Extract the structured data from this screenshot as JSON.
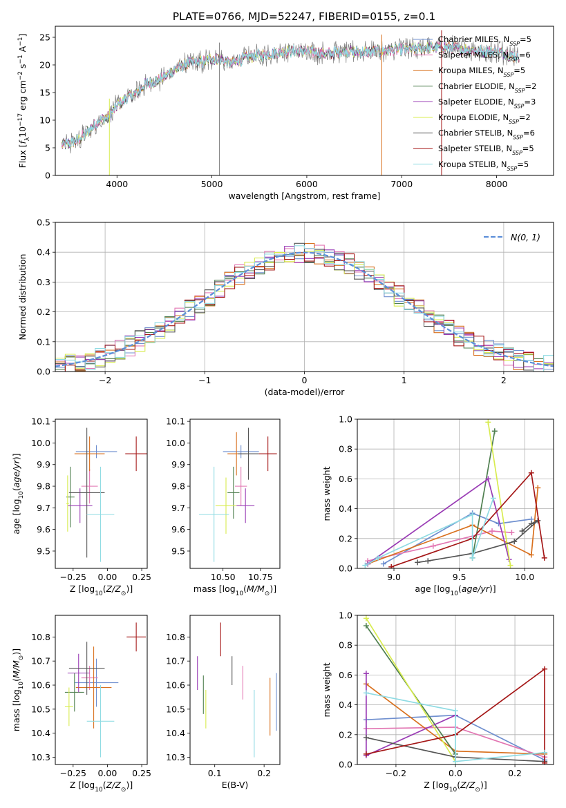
{
  "page_title": "PLATE=0766, MJD=52247, FIBERID=0155, z=0.1",
  "colors": {
    "MILES_Chabrier": "#6f8fcf",
    "MILES_Salpeter": "#e277b3",
    "MILES_Kroupa": "#d9711f",
    "ELODIE_Chabrier": "#4f7f4f",
    "ELODIE_Salpeter": "#9a3cb5",
    "ELODIE_Kroupa": "#d8ec4f",
    "STELIB_Chabrier": "#555555",
    "STELIB_Salpeter": "#a51818",
    "STELIB_Kroupa": "#8fdbe3",
    "normal_curve": "#5b8ed8"
  },
  "chart_data": [
    {
      "id": "spectrum",
      "type": "line",
      "title": "PLATE=0766, MJD=52247, FIBERID=0155, z=0.1",
      "xlabel": "wavelength [Angstrom, rest frame]",
      "ylabel": "Flux [f_λ10^-17 erg cm^-2 s^-1 A^-1]",
      "xlim": [
        3350,
        8600
      ],
      "ylim": [
        0,
        27
      ],
      "xticks": [
        4000,
        5000,
        6000,
        7000,
        8000
      ],
      "yticks": [
        0,
        5,
        10,
        15,
        20,
        25
      ],
      "legend_position": "right",
      "continuum_x": [
        3420,
        3500,
        3600,
        3700,
        3800,
        3900,
        4000,
        4100,
        4200,
        4300,
        4400,
        4500,
        4600,
        4700,
        4800,
        4900,
        5000,
        5100,
        5200,
        5300,
        5400,
        5600,
        5800,
        6000,
        6200,
        6400,
        6600,
        6800,
        7000,
        7200,
        7400,
        7600,
        7800,
        8000,
        8200
      ],
      "continuum_y": [
        5.5,
        5.8,
        6.5,
        8.0,
        9.8,
        10.5,
        12.5,
        14.0,
        14.8,
        16.5,
        17.0,
        17.8,
        19.0,
        20.0,
        20.5,
        20.5,
        21.2,
        21.0,
        20.2,
        21.0,
        21.5,
        22.0,
        22.5,
        22.5,
        22.0,
        22.5,
        22.3,
        22.5,
        22.8,
        23.0,
        23.3,
        23.0,
        22.5,
        22.5,
        21.5
      ],
      "series": [
        {
          "name": "Chabrier MILES, N_SSP=5",
          "color": "#6f8fcf"
        },
        {
          "name": "Salpeter MILES, N_SSP=6",
          "color": "#e277b3"
        },
        {
          "name": "Kroupa MILES, N_SSP=5",
          "color": "#d9711f"
        },
        {
          "name": "Chabrier ELODIE, N_SSP=2",
          "color": "#4f7f4f"
        },
        {
          "name": "Salpeter ELODIE, N_SSP=3",
          "color": "#9a3cb5"
        },
        {
          "name": "Kroupa ELODIE, N_SSP=2",
          "color": "#d8ec4f"
        },
        {
          "name": "Chabrier STELIB, N_SSP=6",
          "color": "#555555"
        },
        {
          "name": "Salpeter STELIB, N_SSP=5",
          "color": "#a51818"
        },
        {
          "name": "Kroupa STELIB, N_SSP=5",
          "color": "#8fdbe3"
        }
      ]
    },
    {
      "id": "residuals",
      "type": "histogram",
      "xlabel": "(data-model)/error",
      "ylabel": "Normed distribution",
      "xlim": [
        -2.5,
        2.5
      ],
      "ylim": [
        0,
        0.5
      ],
      "xticks": [
        -2,
        -1,
        0,
        1,
        2
      ],
      "yticks": [
        0.0,
        0.1,
        0.2,
        0.3,
        0.4,
        0.5
      ],
      "grid": true,
      "legend_position": "top-right",
      "legend_label": "N(0, 1)",
      "bin_width": 0.1
    },
    {
      "id": "age_vs_Z",
      "type": "scatter",
      "xlabel": "Z [log10(Z/Z⊙)]",
      "ylabel": "age [log10(age/yr)]",
      "xlim": [
        -0.38,
        0.29
      ],
      "ylim": [
        9.42,
        10.11
      ],
      "xticks": [
        -0.25,
        0.0,
        0.25
      ],
      "yticks": [
        9.5,
        9.6,
        9.7,
        9.8,
        9.9,
        10.0,
        10.1
      ],
      "points": [
        {
          "color": "#6f8fcf",
          "x": -0.08,
          "y": 9.96,
          "xerr": 0.15,
          "yerr": 0.03
        },
        {
          "color": "#e277b3",
          "x": -0.13,
          "y": 9.8,
          "xerr": 0.06,
          "yerr": 0.08
        },
        {
          "color": "#d9711f",
          "x": -0.13,
          "y": 9.95,
          "xerr": 0.11,
          "yerr": 0.08
        },
        {
          "color": "#4f7f4f",
          "x": -0.27,
          "y": 9.75,
          "xerr": 0.03,
          "yerr": 0.14
        },
        {
          "color": "#9a3cb5",
          "x": -0.2,
          "y": 9.71,
          "xerr": 0.09,
          "yerr": 0.08
        },
        {
          "color": "#d8ec4f",
          "x": -0.29,
          "y": 9.72,
          "xerr": 0.01,
          "yerr": 0.13
        },
        {
          "color": "#555555",
          "x": -0.15,
          "y": 9.77,
          "xerr": 0.13,
          "yerr": 0.3
        },
        {
          "color": "#a51818",
          "x": 0.21,
          "y": 9.95,
          "xerr": 0.08,
          "yerr": 0.08
        },
        {
          "color": "#8fdbe3",
          "x": -0.05,
          "y": 9.67,
          "xerr": 0.1,
          "yerr": 0.22
        }
      ]
    },
    {
      "id": "age_vs_mass",
      "type": "scatter",
      "xlabel": "mass [log10(M/M⊙)]",
      "xlim": [
        10.28,
        10.88
      ],
      "ylim": [
        9.42,
        10.11
      ],
      "xticks": [
        10.5,
        10.75
      ],
      "yticks": [
        9.5,
        9.6,
        9.7,
        9.8,
        9.9,
        10.0,
        10.1
      ],
      "points": [
        {
          "color": "#6f8fcf",
          "x": 10.62,
          "y": 9.96,
          "xerr": 0.12,
          "yerr": 0.03
        },
        {
          "color": "#e277b3",
          "x": 10.62,
          "y": 9.8,
          "xerr": 0.04,
          "yerr": 0.09
        },
        {
          "color": "#d9711f",
          "x": 10.59,
          "y": 9.95,
          "xerr": 0.06,
          "yerr": 0.1
        },
        {
          "color": "#4f7f4f",
          "x": 10.57,
          "y": 9.77,
          "xerr": 0.04,
          "yerr": 0.12
        },
        {
          "color": "#9a3cb5",
          "x": 10.65,
          "y": 9.71,
          "xerr": 0.06,
          "yerr": 0.08
        },
        {
          "color": "#d8ec4f",
          "x": 10.52,
          "y": 9.71,
          "xerr": 0.07,
          "yerr": 0.13
        },
        {
          "color": "#555555",
          "x": 10.67,
          "y": 9.95,
          "xerr": 0.07,
          "yerr": 0.12
        },
        {
          "color": "#a51818",
          "x": 10.8,
          "y": 9.95,
          "xerr": 0.06,
          "yerr": 0.08
        },
        {
          "color": "#8fdbe3",
          "x": 10.44,
          "y": 9.67,
          "xerr": 0.1,
          "yerr": 0.22
        }
      ]
    },
    {
      "id": "massweight_vs_age",
      "type": "line",
      "xlabel": "age [log10(age/yr)]",
      "ylabel": "mass weight",
      "xlim": [
        8.72,
        10.22
      ],
      "ylim": [
        0,
        1.0
      ],
      "xticks": [
        9.0,
        9.5,
        10.0
      ],
      "yticks": [
        0.0,
        0.2,
        0.4,
        0.6,
        0.8,
        1.0
      ],
      "grid": true,
      "series": [
        {
          "color": "#6f8fcf",
          "x": [
            8.92,
            9.6,
            9.8,
            10.05
          ],
          "y": [
            0.03,
            0.37,
            0.3,
            0.33
          ]
        },
        {
          "color": "#e277b3",
          "x": [
            8.8,
            9.3,
            9.75,
            9.9
          ],
          "y": [
            0.05,
            0.15,
            0.25,
            0.24
          ]
        },
        {
          "color": "#d9711f",
          "x": [
            8.8,
            9.6,
            10.05,
            10.1
          ],
          "y": [
            0.03,
            0.29,
            0.09,
            0.54
          ]
        },
        {
          "color": "#4f7f4f",
          "x": [
            9.6,
            9.77
          ],
          "y": [
            0.07,
            0.92
          ]
        },
        {
          "color": "#9a3cb5",
          "x": [
            8.8,
            9.72,
            9.88
          ],
          "y": [
            0.03,
            0.6,
            0.06
          ]
        },
        {
          "color": "#d8ec4f",
          "x": [
            9.72,
            9.89
          ],
          "y": [
            0.98,
            0.02
          ]
        },
        {
          "color": "#555555",
          "x": [
            9.18,
            9.26,
            9.6,
            9.92,
            10.1,
            10.05,
            9.98
          ],
          "y": [
            0.04,
            0.05,
            0.1,
            0.18,
            0.32,
            0.3,
            0.25
          ]
        },
        {
          "color": "#a51818",
          "x": [
            8.98,
            9.6,
            10.05,
            10.15
          ],
          "y": [
            0.01,
            0.2,
            0.64,
            0.07
          ]
        },
        {
          "color": "#8fdbe3",
          "x": [
            8.78,
            8.88,
            9.6,
            9.6,
            9.76
          ],
          "y": [
            0.02,
            0.07,
            0.36,
            0.07,
            0.47
          ]
        }
      ]
    },
    {
      "id": "mass_vs_Z",
      "type": "scatter",
      "xlabel": "Z [log10(Z/Z⊙)]",
      "ylabel": "mass [log10(M/M⊙)]",
      "xlim": [
        -0.38,
        0.29
      ],
      "ylim": [
        10.27,
        10.89
      ],
      "xticks": [
        -0.25,
        0.0,
        0.25
      ],
      "yticks": [
        10.3,
        10.4,
        10.5,
        10.6,
        10.7,
        10.8
      ],
      "points": [
        {
          "color": "#6f8fcf",
          "x": -0.08,
          "y": 10.61,
          "xerr": 0.16,
          "yerr": 0.1
        },
        {
          "color": "#e277b3",
          "x": -0.13,
          "y": 10.63,
          "xerr": 0.06,
          "yerr": 0.05
        },
        {
          "color": "#d9711f",
          "x": -0.1,
          "y": 10.59,
          "xerr": 0.13,
          "yerr": 0.17
        },
        {
          "color": "#4f7f4f",
          "x": -0.24,
          "y": 10.57,
          "xerr": 0.07,
          "yerr": 0.08
        },
        {
          "color": "#9a3cb5",
          "x": -0.21,
          "y": 10.65,
          "xerr": 0.08,
          "yerr": 0.08
        },
        {
          "color": "#d8ec4f",
          "x": -0.28,
          "y": 10.51,
          "xerr": 0.03,
          "yerr": 0.08
        },
        {
          "color": "#555555",
          "x": -0.15,
          "y": 10.67,
          "xerr": 0.13,
          "yerr": 0.11
        },
        {
          "color": "#a51818",
          "x": 0.21,
          "y": 10.8,
          "xerr": 0.07,
          "yerr": 0.06
        },
        {
          "color": "#8fdbe3",
          "x": -0.05,
          "y": 10.45,
          "xerr": 0.1,
          "yerr": 0.15
        }
      ]
    },
    {
      "id": "mass_vs_ebv",
      "type": "scatter",
      "xlabel": "E(B-V)",
      "xlim": [
        0.05,
        0.232
      ],
      "ylim": [
        10.27,
        10.89
      ],
      "xticks": [
        0.1,
        0.2
      ],
      "yticks": [
        10.3,
        10.4,
        10.5,
        10.6,
        10.7,
        10.8
      ],
      "points": [
        {
          "color": "#6f8fcf",
          "x": 0.225,
          "y": 10.53,
          "xerr": 0.0,
          "yerr": 0.12
        },
        {
          "color": "#e277b3",
          "x": 0.157,
          "y": 10.61,
          "xerr": 0.0,
          "yerr": 0.07
        },
        {
          "color": "#d9711f",
          "x": 0.212,
          "y": 10.51,
          "xerr": 0.0,
          "yerr": 0.12
        },
        {
          "color": "#4f7f4f",
          "x": 0.077,
          "y": 10.56,
          "xerr": 0.0,
          "yerr": 0.08
        },
        {
          "color": "#9a3cb5",
          "x": 0.065,
          "y": 10.65,
          "xerr": 0.0,
          "yerr": 0.07
        },
        {
          "color": "#d8ec4f",
          "x": 0.082,
          "y": 10.5,
          "xerr": 0.0,
          "yerr": 0.08
        },
        {
          "color": "#555555",
          "x": 0.135,
          "y": 10.66,
          "xerr": 0.0,
          "yerr": 0.06
        },
        {
          "color": "#a51818",
          "x": 0.112,
          "y": 10.79,
          "xerr": 0.0,
          "yerr": 0.07
        },
        {
          "color": "#8fdbe3",
          "x": 0.18,
          "y": 10.44,
          "xerr": 0.0,
          "yerr": 0.14
        }
      ]
    },
    {
      "id": "massweight_vs_Z",
      "type": "line",
      "xlabel": "Z [log10(Z/Z⊙)]",
      "ylabel": "mass weight",
      "xlim": [
        -0.33,
        0.33
      ],
      "ylim": [
        0,
        1.0
      ],
      "xticks": [
        -0.2,
        0.0,
        0.2
      ],
      "yticks": [
        0.0,
        0.2,
        0.4,
        0.6,
        0.8,
        1.0
      ],
      "grid": true,
      "series": [
        {
          "color": "#6f8fcf",
          "x": [
            -0.3,
            0.0,
            0.3
          ],
          "y": [
            0.3,
            0.33,
            0.03
          ]
        },
        {
          "color": "#e277b3",
          "x": [
            -0.3,
            0.0,
            0.3
          ],
          "y": [
            0.24,
            0.25,
            0.05
          ]
        },
        {
          "color": "#d9711f",
          "x": [
            -0.3,
            0.0,
            0.3
          ],
          "y": [
            0.54,
            0.09,
            0.07
          ]
        },
        {
          "color": "#4f7f4f",
          "x": [
            -0.3,
            0.0
          ],
          "y": [
            0.93,
            0.07
          ]
        },
        {
          "color": "#9a3cb5",
          "x": [
            -0.3,
            -0.3,
            0.0
          ],
          "y": [
            0.61,
            0.06,
            0.33
          ]
        },
        {
          "color": "#d8ec4f",
          "x": [
            -0.3,
            0.0
          ],
          "y": [
            0.98,
            0.02
          ]
        },
        {
          "color": "#555555",
          "x": [
            -0.3,
            0.0,
            0.3
          ],
          "y": [
            0.18,
            0.05,
            0.02
          ]
        },
        {
          "color": "#a51818",
          "x": [
            -0.3,
            0.0,
            0.3,
            0.3
          ],
          "y": [
            0.07,
            0.2,
            0.64,
            0.01
          ]
        },
        {
          "color": "#8fdbe3",
          "x": [
            -0.3,
            0.0,
            0.0,
            0.3
          ],
          "y": [
            0.48,
            0.36,
            0.02,
            0.08
          ]
        }
      ]
    }
  ]
}
